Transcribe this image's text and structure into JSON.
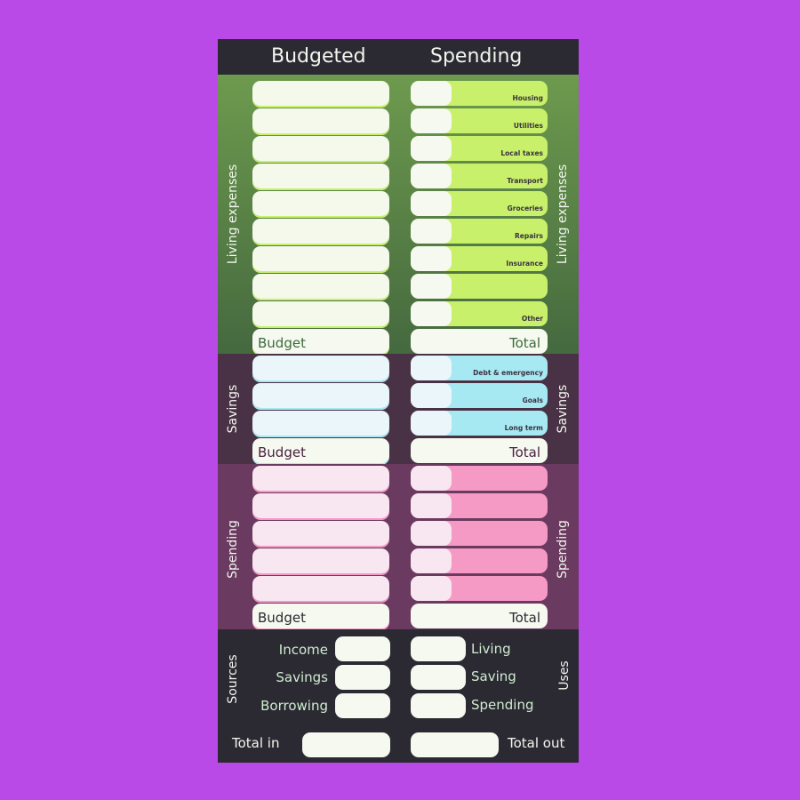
{
  "header": {
    "budgeted": "Budgeted",
    "spending": "Spending"
  },
  "living": {
    "label": "Living expenses",
    "budget_label": "Budget",
    "total_label": "Total",
    "categories": [
      "Housing",
      "Utilities",
      "Local taxes",
      "Transport",
      "Groceries",
      "Repairs",
      "Insurance",
      "",
      "Other"
    ]
  },
  "savings": {
    "label": "Savings",
    "budget_label": "Budget",
    "total_label": "Total",
    "categories": [
      "Debt & emergency",
      "Goals",
      "Long term"
    ]
  },
  "spending": {
    "label": "Spending",
    "budget_label": "Budget",
    "total_label": "Total"
  },
  "sources": {
    "label": "Sources",
    "items": [
      "Income",
      "Savings",
      "Borrowing"
    ],
    "total_label": "Total in"
  },
  "uses": {
    "label": "Uses",
    "items": [
      "Living",
      "Saving",
      "Spending"
    ],
    "total_label": "Total out"
  },
  "colors": {
    "background": "#b94ae8",
    "header": "#2b2a33",
    "living_field": "#c8f06a",
    "savings_field": "#a7e9f2",
    "spending_field": "#f49ac4"
  }
}
